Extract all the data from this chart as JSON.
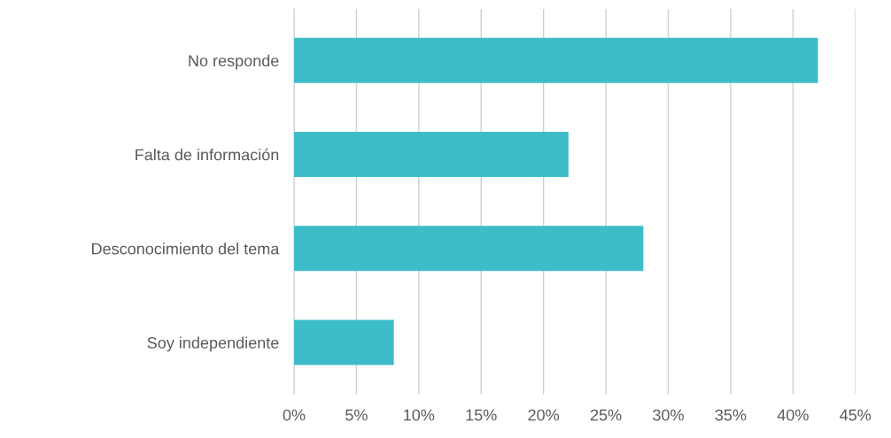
{
  "chart_data": {
    "type": "bar",
    "orientation": "horizontal",
    "categories": [
      "No responde",
      "Falta de información",
      "Desconocimiento del tema",
      "Soy independiente"
    ],
    "values": [
      42,
      22,
      28,
      8
    ],
    "color": "#3dbdc8",
    "xlim": [
      0,
      45
    ],
    "xticks": [
      {
        "value": 0,
        "label": "0%"
      },
      {
        "value": 5,
        "label": "5%"
      },
      {
        "value": 10,
        "label": "10%"
      },
      {
        "value": 15,
        "label": "15%"
      },
      {
        "value": 20,
        "label": "20%"
      },
      {
        "value": 25,
        "label": "25%"
      },
      {
        "value": 30,
        "label": "30%"
      },
      {
        "value": 35,
        "label": "35%"
      },
      {
        "value": 40,
        "label": "40%"
      },
      {
        "value": 45,
        "label": "45%"
      }
    ],
    "grid": "x",
    "legend": false
  }
}
